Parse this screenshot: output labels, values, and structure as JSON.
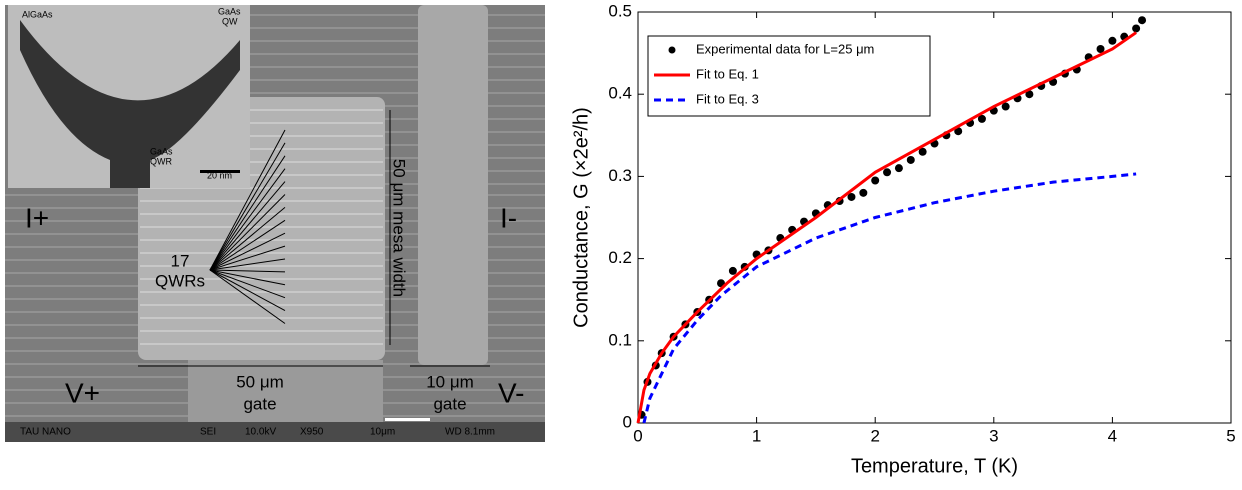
{
  "micrograph": {
    "inset_labels": {
      "material": "AlGaAs",
      "well": [
        "GaAs",
        "QW"
      ],
      "wire": [
        "GaAs",
        "QWR"
      ],
      "scale": "20 nm"
    },
    "contacts": {
      "current_in": "I+",
      "current_out": "I-",
      "voltage_in": "V+",
      "voltage_out": "V-"
    },
    "wires": [
      "17",
      "QWRs"
    ],
    "mesa": "50 μm mesa width",
    "gate_wide": [
      "50 μm",
      "gate"
    ],
    "gate_narrow": [
      "10 μm",
      "gate"
    ],
    "info_bar": [
      "TAU NANO",
      "SEI",
      "10.0kV",
      "X950",
      "10μm",
      "WD 8.1mm"
    ]
  },
  "chart_data": {
    "type": "line",
    "x_label": "Temperature, T (K)",
    "y_label": "Conductance, G (×2e²/h)",
    "xlim": [
      0,
      5
    ],
    "xticks": [
      0,
      1,
      2,
      3,
      4,
      5
    ],
    "ylim": [
      0,
      0.5
    ],
    "yticks": [
      0,
      0.1,
      0.2,
      0.3,
      0.4,
      0.5
    ],
    "legend": "upper left",
    "series": [
      {
        "name": "Experimental data for L=25 μm",
        "color": "#000000",
        "style": "points",
        "x": [
          0.03,
          0.08,
          0.15,
          0.2,
          0.3,
          0.4,
          0.5,
          0.6,
          0.7,
          0.8,
          0.9,
          1.0,
          1.1,
          1.2,
          1.3,
          1.4,
          1.5,
          1.6,
          1.7,
          1.8,
          1.9,
          2.0,
          2.1,
          2.2,
          2.3,
          2.4,
          2.5,
          2.6,
          2.7,
          2.8,
          2.9,
          3.0,
          3.1,
          3.2,
          3.3,
          3.4,
          3.5,
          3.6,
          3.7,
          3.8,
          3.9,
          4.0,
          4.1,
          4.2,
          4.25
        ],
        "values": [
          0.01,
          0.05,
          0.07,
          0.085,
          0.105,
          0.12,
          0.135,
          0.15,
          0.17,
          0.185,
          0.19,
          0.205,
          0.21,
          0.225,
          0.235,
          0.245,
          0.255,
          0.265,
          0.27,
          0.275,
          0.28,
          0.295,
          0.305,
          0.31,
          0.32,
          0.33,
          0.34,
          0.35,
          0.355,
          0.365,
          0.37,
          0.38,
          0.385,
          0.395,
          0.4,
          0.41,
          0.415,
          0.425,
          0.43,
          0.445,
          0.455,
          0.465,
          0.47,
          0.48,
          0.49
        ]
      },
      {
        "name": "Fit to Eq. 1",
        "color": "#ff0000",
        "style": "solid",
        "x": [
          0,
          0.05,
          0.1,
          0.2,
          0.3,
          0.5,
          0.75,
          1.0,
          1.5,
          2.0,
          2.5,
          3.0,
          3.5,
          4.0,
          4.2
        ],
        "values": [
          0,
          0.04,
          0.06,
          0.085,
          0.105,
          0.135,
          0.17,
          0.2,
          0.25,
          0.305,
          0.345,
          0.385,
          0.42,
          0.455,
          0.475
        ]
      },
      {
        "name": "Fit to Eq. 3",
        "color": "#0000ff",
        "style": "dashed",
        "x": [
          0.05,
          0.1,
          0.2,
          0.3,
          0.5,
          0.7,
          1.0,
          1.5,
          2.0,
          2.5,
          3.0,
          3.5,
          4.0,
          4.2
        ],
        "values": [
          0,
          0.03,
          0.06,
          0.09,
          0.125,
          0.155,
          0.19,
          0.225,
          0.25,
          0.268,
          0.282,
          0.293,
          0.3,
          0.303
        ]
      }
    ]
  }
}
